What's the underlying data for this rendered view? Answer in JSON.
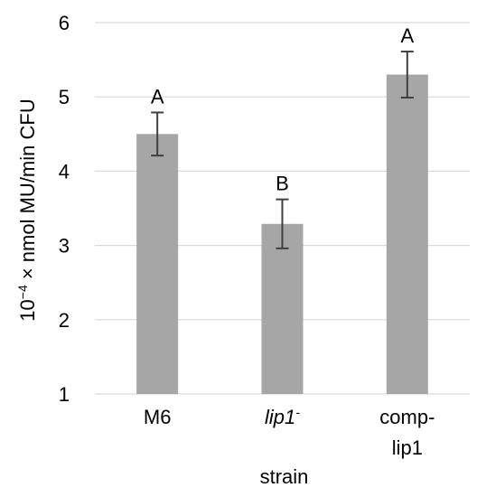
{
  "chart_data": {
    "type": "bar",
    "categories": [
      {
        "lines": [
          "M6"
        ],
        "italic": false,
        "superscript": ""
      },
      {
        "lines": [
          "lip1"
        ],
        "italic": true,
        "superscript": "-"
      },
      {
        "lines": [
          "comp-",
          "lip1"
        ],
        "italic": false,
        "superscript": ""
      }
    ],
    "values": [
      4.5,
      3.29,
      5.3
    ],
    "errors": [
      0.29,
      0.33,
      0.31
    ],
    "significance": [
      "A",
      "B",
      "A"
    ],
    "ylim": [
      1,
      6
    ],
    "yticks": [
      1,
      2,
      3,
      4,
      5,
      6
    ],
    "xlabel": "strain",
    "ylabel_prefix": "10",
    "ylabel_exponent": "−4",
    "ylabel_suffix": " × nmol MU/min CFU",
    "grid": true,
    "bar_color": "#a6a6a6",
    "error_color": "#404040",
    "grid_color": "#d9d9d9"
  }
}
